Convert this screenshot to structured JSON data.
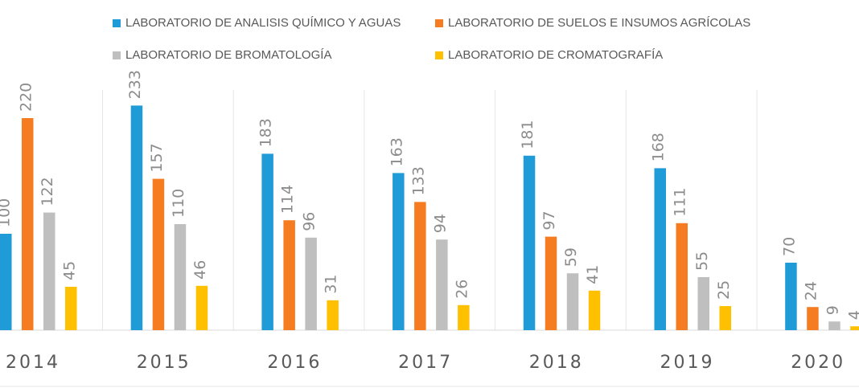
{
  "chart_data": {
    "type": "bar",
    "categories": [
      "2014",
      "2015",
      "2016",
      "2017",
      "2018",
      "2019",
      "2020"
    ],
    "series": [
      {
        "name": "LABORATORIO DE ANALISIS QUÍMICO Y AGUAS",
        "color": "#1F9BD7",
        "values": [
          100,
          233,
          183,
          163,
          181,
          168,
          70
        ]
      },
      {
        "name": "LABORATORIO DE SUELOS E INSUMOS AGRÍCOLAS",
        "color": "#F57C20",
        "values": [
          220,
          157,
          114,
          133,
          97,
          111,
          24
        ]
      },
      {
        "name": "LABORATORIO DE BROMATOLOGÍA",
        "color": "#BFBFBF",
        "values": [
          122,
          110,
          96,
          94,
          59,
          55,
          9
        ]
      },
      {
        "name": "LABORATORIO DE CROMATOGRAFÍA",
        "color": "#FFC000",
        "values": [
          45,
          46,
          31,
          26,
          41,
          25,
          4
        ]
      }
    ],
    "legend_position": "top",
    "data_labels": true,
    "grid": false
  }
}
